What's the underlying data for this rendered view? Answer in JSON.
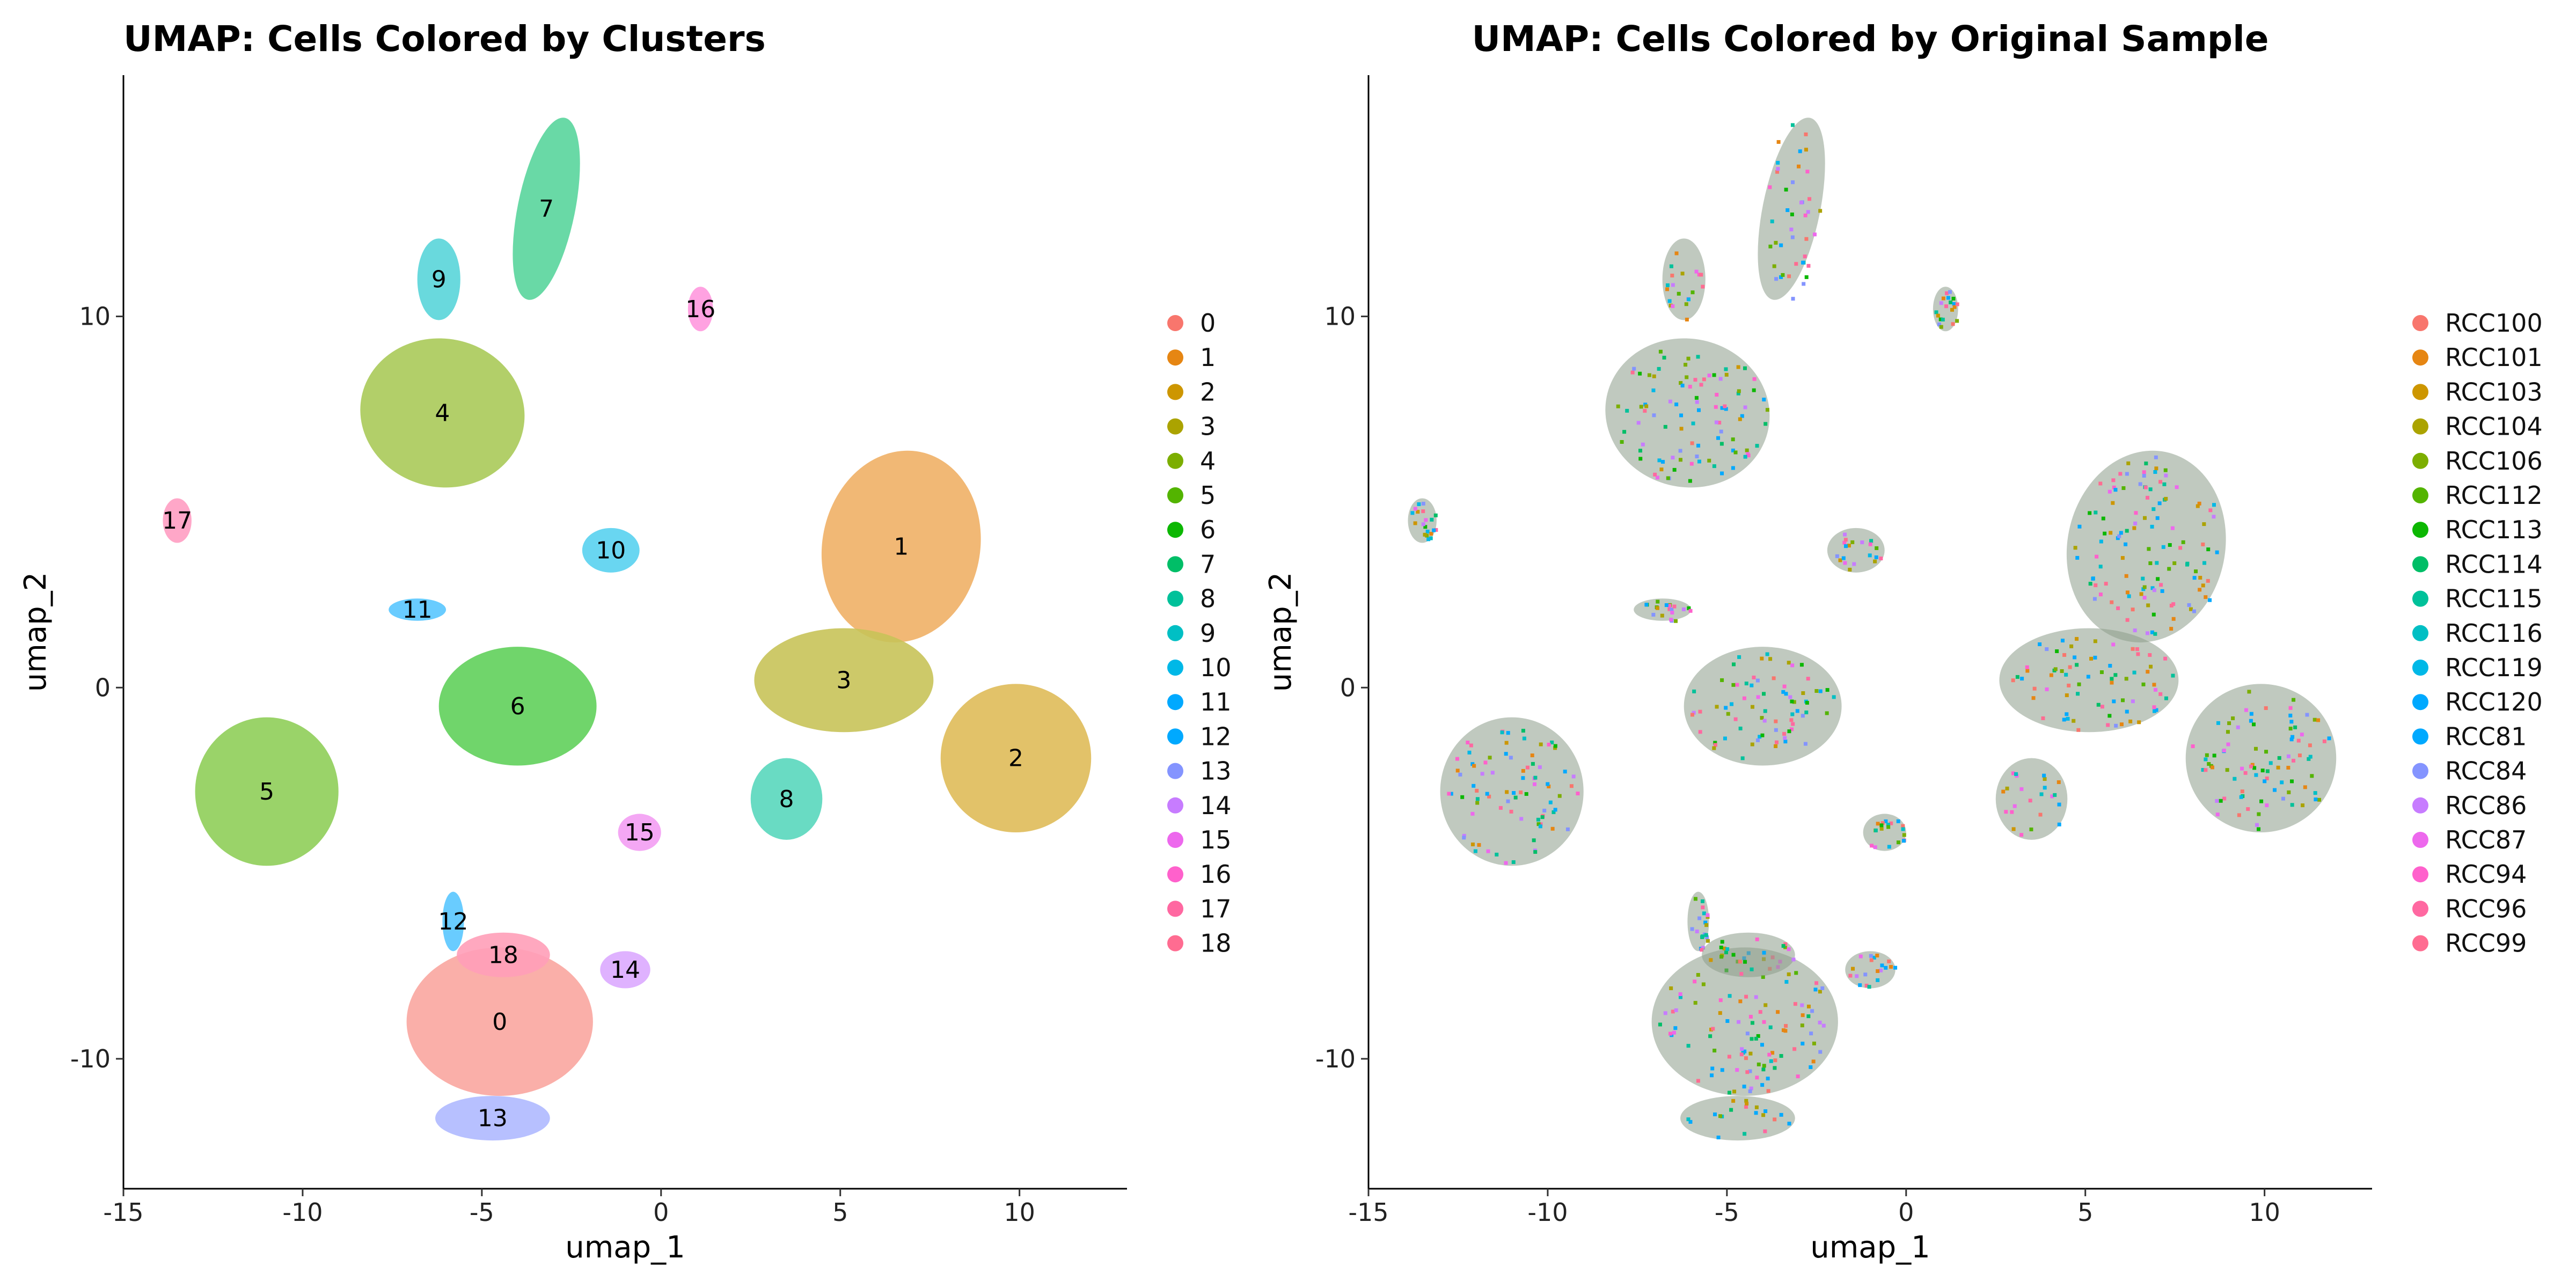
{
  "chart_data": [
    {
      "type": "scatter",
      "title": "UMAP: Cells Colored by Clusters",
      "xlabel": "umap_1",
      "ylabel": "umap_2",
      "xlim": [
        -15,
        13
      ],
      "ylim": [
        -13.5,
        16.5
      ],
      "xticks": [
        -15,
        -10,
        -5,
        0,
        5,
        10
      ],
      "yticks": [
        -10,
        0,
        10
      ],
      "xtick_labels": [
        "-15",
        "-10",
        "-5",
        "0",
        "5",
        "10"
      ],
      "ytick_labels": [
        "-10",
        "0",
        "10"
      ],
      "grid": false,
      "legend_position": "right",
      "legend": [
        {
          "label": "0",
          "color": "#F8766D"
        },
        {
          "label": "1",
          "color": "#E68613"
        },
        {
          "label": "2",
          "color": "#CD9600"
        },
        {
          "label": "3",
          "color": "#ABA300"
        },
        {
          "label": "4",
          "color": "#7CAE00"
        },
        {
          "label": "5",
          "color": "#53B400"
        },
        {
          "label": "6",
          "color": "#0CB702"
        },
        {
          "label": "7",
          "color": "#00BE67"
        },
        {
          "label": "8",
          "color": "#00C19A"
        },
        {
          "label": "9",
          "color": "#00BFC4"
        },
        {
          "label": "10",
          "color": "#00B8E7"
        },
        {
          "label": "11",
          "color": "#00A9FF"
        },
        {
          "label": "12",
          "color": "#00A9FF"
        },
        {
          "label": "13",
          "color": "#8494FF"
        },
        {
          "label": "14",
          "color": "#C77CFF"
        },
        {
          "label": "15",
          "color": "#ED68ED"
        },
        {
          "label": "16",
          "color": "#FF61CC"
        },
        {
          "label": "17",
          "color": "#FF68A1"
        },
        {
          "label": "18",
          "color": "#FF6C91"
        }
      ],
      "clusters": [
        {
          "label": "0",
          "x": -4.5,
          "y": -9.0,
          "color": "#F8766D"
        },
        {
          "label": "1",
          "x": 6.7,
          "y": 3.8,
          "color": "#E68613"
        },
        {
          "label": "2",
          "x": 9.9,
          "y": -1.9,
          "color": "#CD9600"
        },
        {
          "label": "3",
          "x": 5.1,
          "y": 0.2,
          "color": "#ABA300"
        },
        {
          "label": "4",
          "x": -6.1,
          "y": 7.4,
          "color": "#7CAE00"
        },
        {
          "label": "5",
          "x": -11.0,
          "y": -2.8,
          "color": "#53B400"
        },
        {
          "label": "6",
          "x": -4.0,
          "y": -0.5,
          "color": "#0CB702"
        },
        {
          "label": "7",
          "x": -3.2,
          "y": 12.9,
          "color": "#00BE67"
        },
        {
          "label": "8",
          "x": 3.5,
          "y": -3.0,
          "color": "#00C19A"
        },
        {
          "label": "9",
          "x": -6.2,
          "y": 11.0,
          "color": "#00BFC4"
        },
        {
          "label": "10",
          "x": -1.4,
          "y": 3.7,
          "color": "#00B8E7"
        },
        {
          "label": "11",
          "x": -6.8,
          "y": 2.1,
          "color": "#00A9FF"
        },
        {
          "label": "12",
          "x": -5.8,
          "y": -6.3,
          "color": "#00A9FF"
        },
        {
          "label": "13",
          "x": -4.7,
          "y": -11.6,
          "color": "#8494FF"
        },
        {
          "label": "14",
          "x": -1.0,
          "y": -7.6,
          "color": "#C77CFF"
        },
        {
          "label": "15",
          "x": -0.6,
          "y": -3.9,
          "color": "#ED68ED"
        },
        {
          "label": "16",
          "x": 1.1,
          "y": 10.2,
          "color": "#FF61CC"
        },
        {
          "label": "17",
          "x": -13.5,
          "y": 4.5,
          "color": "#FF68A1"
        },
        {
          "label": "18",
          "x": -4.4,
          "y": -7.2,
          "color": "#FF6C91"
        }
      ]
    },
    {
      "type": "scatter",
      "title": "UMAP: Cells Colored by Original Sample",
      "xlabel": "umap_1",
      "ylabel": "umap_2",
      "xlim": [
        -15,
        13
      ],
      "ylim": [
        -13.5,
        16.5
      ],
      "xticks": [
        -15,
        -10,
        -5,
        0,
        5,
        10
      ],
      "yticks": [
        -10,
        0,
        10
      ],
      "xtick_labels": [
        "-15",
        "-10",
        "-5",
        "0",
        "5",
        "10"
      ],
      "ytick_labels": [
        "-10",
        "0",
        "10"
      ],
      "grid": false,
      "legend_position": "right",
      "legend": [
        {
          "label": "RCC100",
          "color": "#F8766D"
        },
        {
          "label": "RCC101",
          "color": "#E68613"
        },
        {
          "label": "RCC103",
          "color": "#CD9600"
        },
        {
          "label": "RCC104",
          "color": "#ABA300"
        },
        {
          "label": "RCC106",
          "color": "#7CAE00"
        },
        {
          "label": "RCC112",
          "color": "#53B400"
        },
        {
          "label": "RCC113",
          "color": "#0CB702"
        },
        {
          "label": "RCC114",
          "color": "#00BE67"
        },
        {
          "label": "RCC115",
          "color": "#00C19A"
        },
        {
          "label": "RCC116",
          "color": "#00BFC4"
        },
        {
          "label": "RCC119",
          "color": "#00B8E7"
        },
        {
          "label": "RCC120",
          "color": "#00A9FF"
        },
        {
          "label": "RCC81",
          "color": "#00A9FF"
        },
        {
          "label": "RCC84",
          "color": "#8494FF"
        },
        {
          "label": "RCC86",
          "color": "#C77CFF"
        },
        {
          "label": "RCC87",
          "color": "#ED68ED"
        },
        {
          "label": "RCC94",
          "color": "#FF61CC"
        },
        {
          "label": "RCC96",
          "color": "#FF68A1"
        },
        {
          "label": "RCC99",
          "color": "#FF6C91"
        }
      ]
    }
  ]
}
